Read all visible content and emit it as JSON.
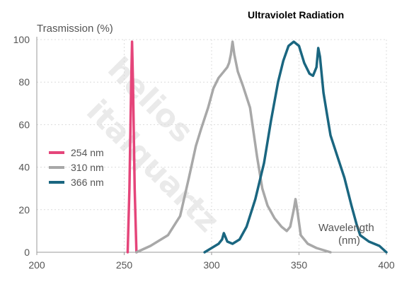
{
  "chart_data": {
    "type": "line",
    "title": "Ultraviolet Radiation",
    "ylabel": "Trasmission (%)",
    "xlabel": [
      "Wavelength",
      "(nm)"
    ],
    "xlim": [
      200,
      400
    ],
    "ylim": [
      0,
      100
    ],
    "xticks": [
      200,
      250,
      300,
      350,
      400
    ],
    "yticks": [
      0,
      20,
      40,
      60,
      80,
      100
    ],
    "grid": true,
    "legend_position": "left-center",
    "watermark": "hellma helios italquartz",
    "series": [
      {
        "name": "254 nm",
        "color": "#e5457a",
        "points": [
          [
            252,
            0
          ],
          [
            253,
            30
          ],
          [
            254,
            80
          ],
          [
            254.5,
            99
          ],
          [
            255,
            80
          ],
          [
            256,
            30
          ],
          [
            257,
            0
          ]
        ]
      },
      {
        "name": "310 nm",
        "color": "#a8a8a8",
        "points": [
          [
            257,
            0
          ],
          [
            265,
            3
          ],
          [
            275,
            8
          ],
          [
            282,
            17
          ],
          [
            287,
            35
          ],
          [
            291,
            50
          ],
          [
            294,
            58
          ],
          [
            298,
            68
          ],
          [
            301,
            77
          ],
          [
            304,
            82
          ],
          [
            307,
            85
          ],
          [
            309,
            87
          ],
          [
            310,
            89
          ],
          [
            311,
            93
          ],
          [
            312,
            99
          ],
          [
            313,
            93
          ],
          [
            315,
            85
          ],
          [
            318,
            78
          ],
          [
            322,
            68
          ],
          [
            326,
            45
          ],
          [
            329,
            30
          ],
          [
            332,
            22
          ],
          [
            336,
            16
          ],
          [
            340,
            12
          ],
          [
            343,
            10
          ],
          [
            345,
            12
          ],
          [
            347,
            20
          ],
          [
            348,
            25
          ],
          [
            349,
            20
          ],
          [
            351,
            8
          ],
          [
            355,
            4
          ],
          [
            360,
            2
          ],
          [
            368,
            0
          ]
        ]
      },
      {
        "name": "366 nm",
        "color": "#1a6680",
        "points": [
          [
            296,
            0
          ],
          [
            300,
            2
          ],
          [
            304,
            4
          ],
          [
            306,
            6
          ],
          [
            307,
            9
          ],
          [
            309,
            5
          ],
          [
            312,
            4
          ],
          [
            316,
            6
          ],
          [
            320,
            12
          ],
          [
            325,
            25
          ],
          [
            330,
            42
          ],
          [
            334,
            62
          ],
          [
            338,
            80
          ],
          [
            341,
            90
          ],
          [
            344,
            97
          ],
          [
            347,
            99
          ],
          [
            350,
            97
          ],
          [
            353,
            89
          ],
          [
            356,
            84
          ],
          [
            358,
            83
          ],
          [
            360,
            87
          ],
          [
            361,
            96
          ],
          [
            362,
            92
          ],
          [
            364,
            75
          ],
          [
            366,
            65
          ],
          [
            368,
            55
          ],
          [
            372,
            45
          ],
          [
            376,
            35
          ],
          [
            380,
            22
          ],
          [
            383,
            13
          ],
          [
            385,
            8
          ],
          [
            390,
            5
          ],
          [
            396,
            3
          ],
          [
            400,
            0
          ]
        ]
      }
    ]
  }
}
